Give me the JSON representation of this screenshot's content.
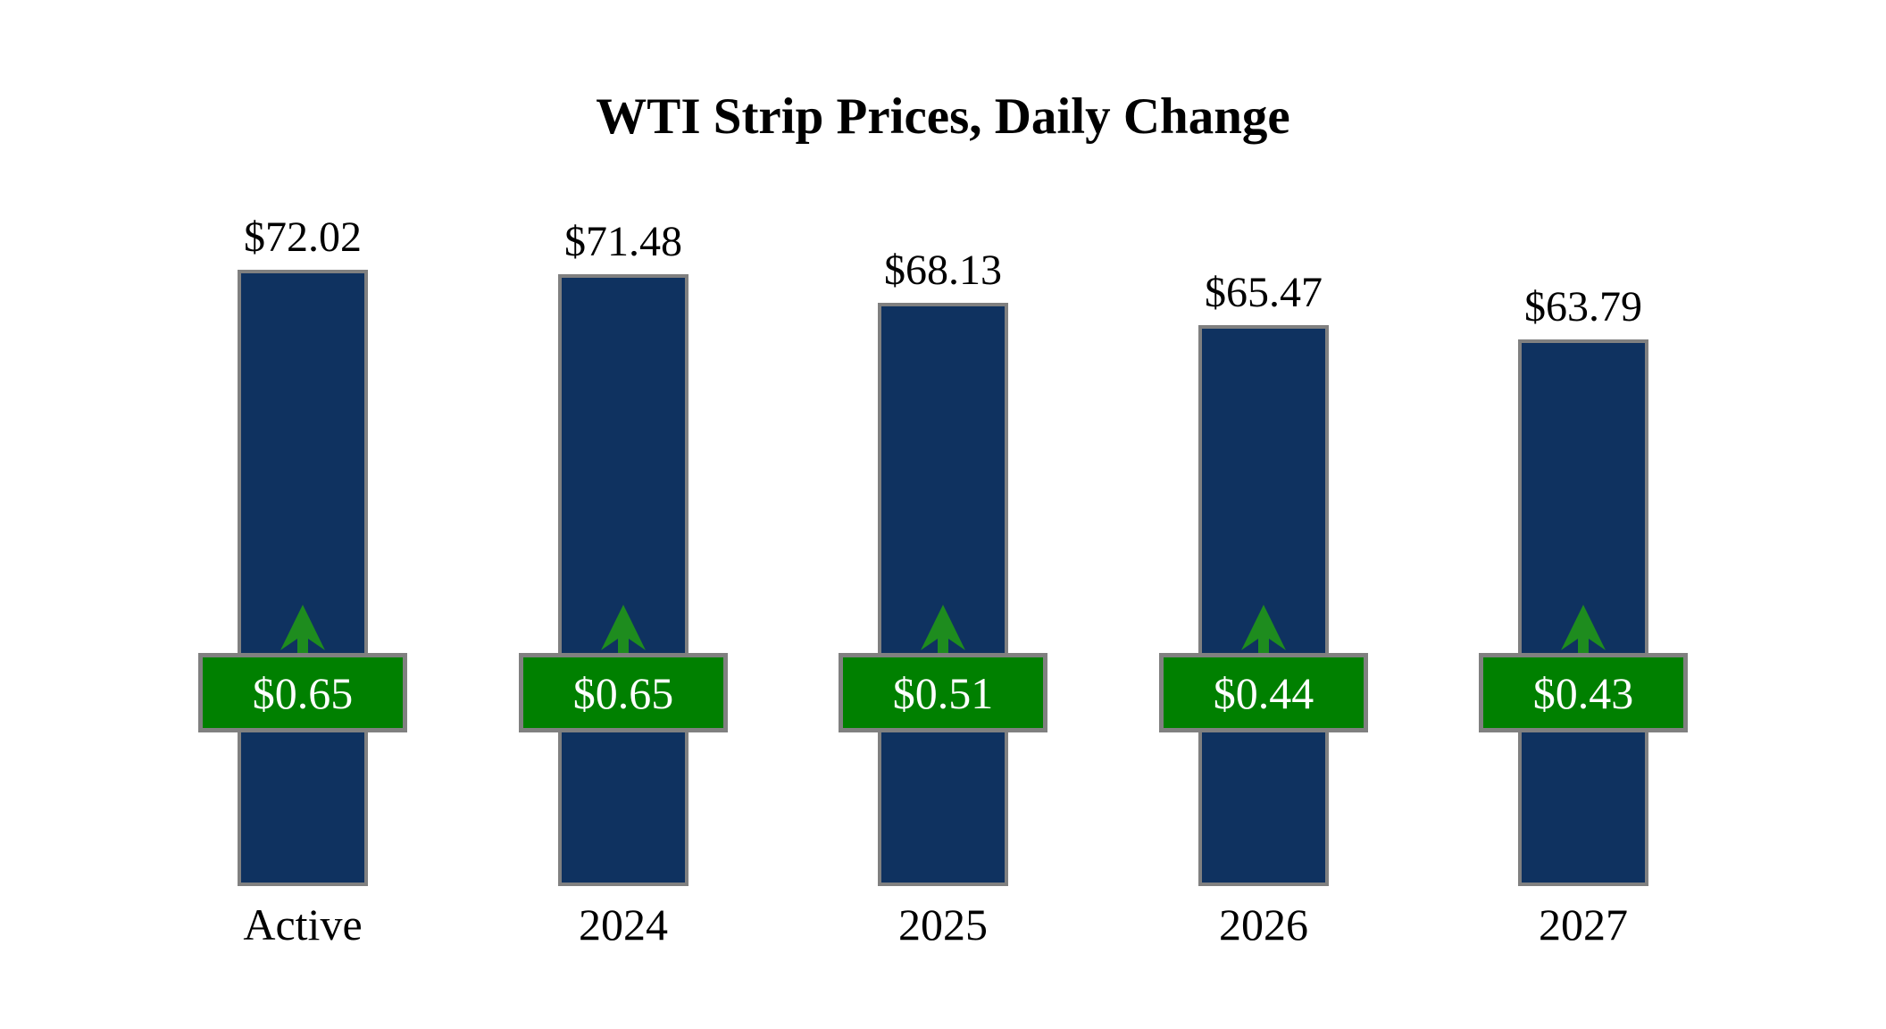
{
  "title": "WTI Strip Prices, Daily Change",
  "colors": {
    "bar": "#0f3260",
    "badge": "#008000",
    "arrow": "#1e8c1e",
    "border": "#808080",
    "label": "#000000",
    "badge_text": "#ffffff"
  },
  "chart_data": {
    "type": "bar",
    "title": "WTI Strip Prices, Daily Change",
    "categories": [
      "Active",
      "2024",
      "2025",
      "2026",
      "2027"
    ],
    "series": [
      {
        "name": "WTI Strip Price",
        "values": [
          72.02,
          71.48,
          68.13,
          65.47,
          63.79
        ],
        "labels": [
          "$72.02",
          "$71.48",
          "$68.13",
          "$65.47",
          "$63.79"
        ],
        "color": "#0f3260"
      },
      {
        "name": "Daily Change",
        "values": [
          0.65,
          0.65,
          0.51,
          0.44,
          0.43
        ],
        "labels": [
          "$0.65",
          "$0.65",
          "$0.51",
          "$0.44",
          "$0.43"
        ],
        "direction": "up",
        "color": "#008000"
      }
    ],
    "legend": "none",
    "grid": false,
    "axes_hidden": true,
    "value_axis_implied_range": [
      63.79,
      72.02
    ]
  }
}
